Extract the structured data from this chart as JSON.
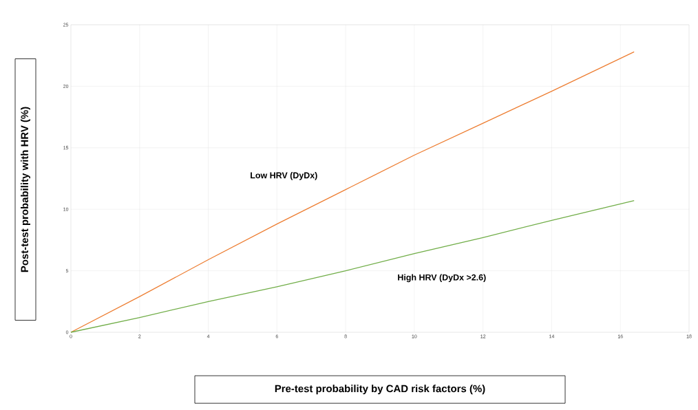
{
  "chart_data": {
    "type": "line",
    "xlabel": "Pre-test probability by CAD risk factors (%)",
    "ylabel": "Post-test probability with HRV  (%)",
    "xlim": [
      0,
      18
    ],
    "ylim": [
      0,
      25
    ],
    "xticks": [
      0,
      2,
      4,
      6,
      8,
      10,
      12,
      14,
      16,
      18
    ],
    "yticks": [
      0,
      5,
      10,
      15,
      20,
      25
    ],
    "grid": true,
    "legend": false,
    "marker": "none",
    "line_style": "solid",
    "series": [
      {
        "name": "Low HRV (DyDx)",
        "color": "#ed7d31",
        "x": [
          0,
          2,
          4,
          6,
          8,
          10,
          12,
          14,
          16.4
        ],
        "values": [
          0,
          2.9,
          5.9,
          8.8,
          11.6,
          14.4,
          17.0,
          19.6,
          22.8
        ]
      },
      {
        "name": "High HRV (DyDx >2.6)",
        "color": "#70ad47",
        "x": [
          0,
          2,
          4,
          6,
          8,
          10,
          12,
          14,
          16.4
        ],
        "values": [
          0,
          1.2,
          2.5,
          3.7,
          5.0,
          6.4,
          7.7,
          9.1,
          10.7
        ]
      }
    ]
  }
}
